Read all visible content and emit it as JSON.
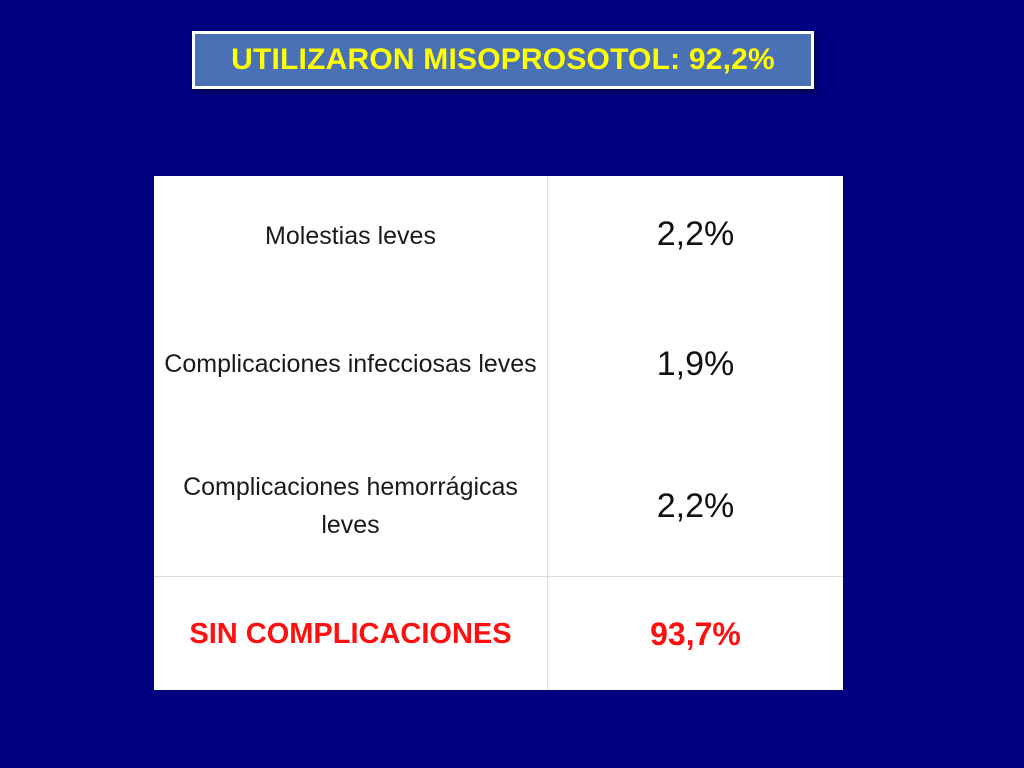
{
  "title": "UTILIZARON MISOPROSOTOL: 92,2%",
  "rows": [
    {
      "label": "Molestias leves",
      "value": "2,2%"
    },
    {
      "label": "Complicaciones infecciosas leves",
      "value": "1,9%"
    },
    {
      "label": "Complicaciones hemorrágicas leves",
      "value": "2,2%"
    }
  ],
  "total": {
    "label": "SIN COMPLICACIONES",
    "value": "93,7%"
  },
  "colors": {
    "background": "#000080",
    "title_box": "#4a70b6",
    "title_text": "#ffff00",
    "table_bg": "#ffffff",
    "total_text": "#ff1010"
  }
}
